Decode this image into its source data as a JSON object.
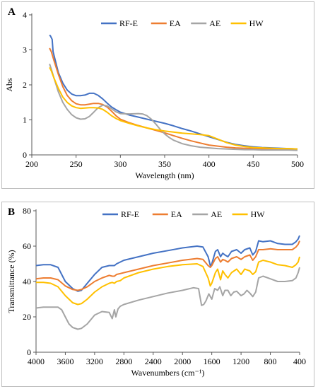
{
  "chart_data": [
    {
      "panel_label": "A",
      "type": "line",
      "xlabel": "Wavelength (nm)",
      "ylabel": "Abs",
      "xlim": [
        200,
        500
      ],
      "ylim": [
        0,
        4
      ],
      "xticks": [
        200,
        250,
        300,
        350,
        400,
        450,
        500
      ],
      "yticks": [
        0,
        1,
        2,
        3,
        4
      ],
      "grid": false,
      "legend_position": "top",
      "series": [
        {
          "name": "RF-E",
          "color": "#4472C4",
          "x": [
            220,
            221,
            223,
            224,
            226,
            228,
            230,
            235,
            240,
            245,
            250,
            255,
            260,
            265,
            270,
            275,
            280,
            285,
            290,
            295,
            300,
            310,
            320,
            330,
            340,
            350,
            360,
            370,
            380,
            390,
            400,
            410,
            420,
            430,
            440,
            450,
            460,
            470,
            480,
            490,
            500
          ],
          "y": [
            3.42,
            3.4,
            3.3,
            2.95,
            2.75,
            2.55,
            2.35,
            2.05,
            1.85,
            1.74,
            1.69,
            1.69,
            1.71,
            1.76,
            1.76,
            1.7,
            1.6,
            1.48,
            1.37,
            1.29,
            1.22,
            1.14,
            1.08,
            1.02,
            0.96,
            0.9,
            0.83,
            0.75,
            0.68,
            0.6,
            0.52,
            0.44,
            0.36,
            0.3,
            0.26,
            0.23,
            0.21,
            0.2,
            0.19,
            0.18,
            0.17
          ]
        },
        {
          "name": "EA",
          "color": "#ED7D31",
          "x": [
            220,
            222,
            225,
            230,
            235,
            240,
            245,
            250,
            255,
            260,
            265,
            270,
            275,
            280,
            285,
            290,
            295,
            300,
            310,
            320,
            330,
            340,
            350,
            360,
            370,
            380,
            390,
            400,
            410,
            420,
            430,
            440,
            450,
            460,
            470,
            480,
            490,
            500
          ],
          "y": [
            3.05,
            2.95,
            2.7,
            2.3,
            1.95,
            1.7,
            1.55,
            1.46,
            1.43,
            1.43,
            1.45,
            1.47,
            1.47,
            1.44,
            1.37,
            1.25,
            1.12,
            1.02,
            0.92,
            0.84,
            0.77,
            0.7,
            0.63,
            0.55,
            0.47,
            0.4,
            0.34,
            0.28,
            0.25,
            0.22,
            0.2,
            0.19,
            0.18,
            0.17,
            0.17,
            0.16,
            0.16,
            0.15
          ]
        },
        {
          "name": "AE",
          "color": "#A5A5A5",
          "x": [
            220,
            222,
            225,
            230,
            235,
            240,
            245,
            250,
            255,
            260,
            265,
            270,
            275,
            280,
            285,
            290,
            295,
            300,
            310,
            320,
            325,
            330,
            335,
            340,
            345,
            350,
            355,
            360,
            370,
            380,
            390,
            400,
            410,
            420,
            430,
            440,
            450,
            460,
            470,
            480,
            490,
            500
          ],
          "y": [
            2.6,
            2.45,
            2.2,
            1.8,
            1.5,
            1.3,
            1.15,
            1.06,
            1.02,
            1.03,
            1.1,
            1.22,
            1.35,
            1.42,
            1.4,
            1.32,
            1.23,
            1.18,
            1.17,
            1.18,
            1.17,
            1.12,
            1.02,
            0.88,
            0.73,
            0.6,
            0.5,
            0.42,
            0.32,
            0.26,
            0.22,
            0.2,
            0.18,
            0.17,
            0.16,
            0.15,
            0.15,
            0.14,
            0.14,
            0.14,
            0.14,
            0.13
          ]
        },
        {
          "name": "HW",
          "color": "#FFC000",
          "x": [
            220,
            222,
            225,
            230,
            235,
            240,
            245,
            250,
            255,
            260,
            265,
            270,
            275,
            280,
            285,
            290,
            295,
            300,
            310,
            320,
            330,
            340,
            350,
            360,
            370,
            380,
            390,
            400,
            410,
            420,
            430,
            440,
            450,
            460,
            470,
            480,
            490,
            500
          ],
          "y": [
            2.5,
            2.4,
            2.2,
            1.9,
            1.65,
            1.5,
            1.4,
            1.35,
            1.33,
            1.34,
            1.35,
            1.35,
            1.34,
            1.3,
            1.22,
            1.12,
            1.04,
            0.98,
            0.9,
            0.83,
            0.77,
            0.72,
            0.68,
            0.65,
            0.62,
            0.6,
            0.58,
            0.55,
            0.45,
            0.35,
            0.28,
            0.24,
            0.21,
            0.2,
            0.19,
            0.18,
            0.18,
            0.17
          ]
        }
      ]
    },
    {
      "panel_label": "B",
      "type": "line",
      "xlabel": "Wavenumbers (cm⁻¹)",
      "ylabel": "Transmittance (%)",
      "xlim": [
        4000,
        400
      ],
      "x_reversed": true,
      "ylim": [
        0,
        80
      ],
      "xticks": [
        4000,
        3600,
        3200,
        2800,
        2400,
        2000,
        1600,
        1200,
        800,
        400
      ],
      "yticks": [
        0,
        20,
        40,
        60,
        80
      ],
      "grid": false,
      "legend_position": "top",
      "series": [
        {
          "name": "RF-E",
          "color": "#4472C4",
          "x": [
            4000,
            3900,
            3800,
            3700,
            3600,
            3500,
            3430,
            3380,
            3300,
            3200,
            3100,
            3000,
            2960,
            2930,
            2900,
            2850,
            2800,
            2600,
            2400,
            2200,
            2000,
            1800,
            1720,
            1650,
            1620,
            1600,
            1550,
            1520,
            1480,
            1450,
            1420,
            1380,
            1330,
            1260,
            1200,
            1150,
            1080,
            1040,
            1000,
            960,
            900,
            800,
            700,
            600,
            500,
            450,
            420,
            400
          ],
          "y": [
            49,
            49.5,
            49.5,
            48,
            40,
            36,
            34.5,
            35,
            39,
            44,
            48,
            49,
            49,
            49,
            50,
            51,
            52,
            54,
            56,
            57.5,
            59,
            60,
            59.5,
            54,
            49,
            50,
            57,
            58,
            54,
            56,
            55,
            54,
            57,
            58,
            56,
            58,
            59,
            55,
            57,
            63,
            62.5,
            63,
            61.5,
            61,
            61,
            62.5,
            64,
            66
          ]
        },
        {
          "name": "EA",
          "color": "#ED7D31",
          "x": [
            4000,
            3900,
            3800,
            3700,
            3600,
            3500,
            3430,
            3380,
            3300,
            3200,
            3100,
            3000,
            2960,
            2930,
            2900,
            2850,
            2800,
            2600,
            2400,
            2200,
            2000,
            1800,
            1720,
            1650,
            1620,
            1600,
            1550,
            1520,
            1480,
            1450,
            1420,
            1380,
            1330,
            1260,
            1200,
            1150,
            1080,
            1040,
            1000,
            960,
            900,
            800,
            700,
            600,
            500,
            450,
            420,
            400
          ],
          "y": [
            41.5,
            42,
            42,
            41,
            37.5,
            35.5,
            35,
            35.5,
            37,
            40,
            42,
            43.5,
            43,
            43,
            44,
            44.5,
            45,
            47,
            49,
            50.5,
            52,
            53,
            52.5,
            49,
            48,
            49,
            53,
            54,
            51,
            52.5,
            52,
            51,
            53,
            54,
            52.5,
            54,
            55,
            52,
            54,
            58,
            58,
            58.5,
            58,
            58,
            58,
            59.5,
            61,
            63
          ]
        },
        {
          "name": "AE",
          "color": "#A5A5A5",
          "x": [
            4000,
            3900,
            3800,
            3700,
            3650,
            3600,
            3550,
            3500,
            3430,
            3380,
            3300,
            3200,
            3100,
            3000,
            2960,
            2930,
            2910,
            2880,
            2850,
            2800,
            2600,
            2400,
            2200,
            2000,
            1850,
            1780,
            1740,
            1710,
            1680,
            1640,
            1600,
            1560,
            1520,
            1490,
            1450,
            1420,
            1380,
            1340,
            1300,
            1260,
            1200,
            1160,
            1120,
            1080,
            1040,
            1000,
            960,
            900,
            800,
            700,
            600,
            500,
            450,
            420,
            400
          ],
          "y": [
            25,
            25.5,
            25.5,
            25.5,
            24,
            20,
            16,
            14,
            13,
            13.5,
            16,
            21,
            23,
            22.5,
            19,
            24,
            20,
            24.5,
            26,
            27,
            29.5,
            31.5,
            33.5,
            35,
            36.5,
            36,
            26.5,
            27,
            29,
            33,
            30,
            36,
            35,
            37,
            32,
            35,
            35,
            32,
            34,
            34.5,
            32,
            33,
            35,
            33.5,
            31.5,
            34,
            42,
            43,
            41.5,
            40,
            40,
            40.5,
            42,
            45,
            48
          ]
        },
        {
          "name": "HW",
          "color": "#FFC000",
          "x": [
            4000,
            3900,
            3800,
            3700,
            3600,
            3500,
            3430,
            3380,
            3300,
            3200,
            3100,
            3000,
            2960,
            2930,
            2900,
            2850,
            2800,
            2600,
            2400,
            2200,
            2000,
            1800,
            1720,
            1650,
            1620,
            1600,
            1550,
            1520,
            1480,
            1450,
            1420,
            1380,
            1330,
            1260,
            1200,
            1150,
            1080,
            1040,
            1000,
            960,
            900,
            800,
            700,
            600,
            500,
            450,
            420,
            400
          ],
          "y": [
            39.5,
            39.5,
            39,
            37,
            32,
            28,
            27,
            27.5,
            30,
            34,
            37,
            39,
            39.5,
            39,
            40,
            40.5,
            42,
            45,
            47,
            48.5,
            49.5,
            50,
            48.5,
            42,
            37.5,
            39,
            45,
            47,
            41,
            46,
            44,
            42,
            45,
            47,
            44,
            47,
            46,
            44,
            45.5,
            51,
            52,
            51,
            49.5,
            49,
            48,
            49.5,
            51,
            54
          ]
        }
      ]
    }
  ]
}
